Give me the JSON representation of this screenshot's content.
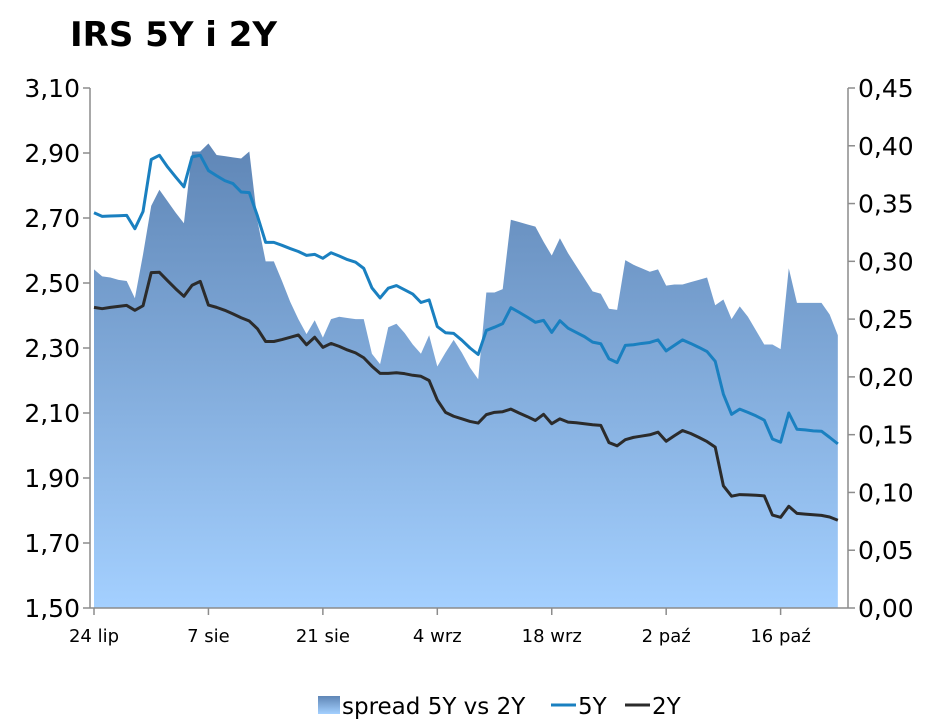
{
  "chart_data": {
    "type": "line",
    "title": "IRS 5Y i 2Y",
    "x_tick_labels": [
      "24 lip",
      "7 sie",
      "21 sie",
      "4 wrz",
      "18 wrz",
      "2 paź",
      "16 paź"
    ],
    "x_tick_days": [
      0,
      14,
      28,
      42,
      56,
      70,
      84
    ],
    "x_range_days": [
      0,
      92
    ],
    "left_axis": {
      "ylim": [
        1.5,
        3.1
      ],
      "ticks": [
        1.5,
        1.7,
        1.9,
        2.1,
        2.3,
        2.5,
        2.7,
        2.9,
        3.1
      ],
      "tick_labels": [
        "1,50",
        "1,70",
        "1,90",
        "2,10",
        "2,30",
        "2,50",
        "2,70",
        "2,90",
        "3,10"
      ]
    },
    "right_axis": {
      "ylim": [
        0.0,
        0.45
      ],
      "ticks": [
        0.0,
        0.05,
        0.1,
        0.15,
        0.2,
        0.25,
        0.3,
        0.35,
        0.4,
        0.45
      ],
      "tick_labels": [
        "0,00",
        "0,05",
        "0,10",
        "0,15",
        "0,20",
        "0,25",
        "0,30",
        "0,35",
        "0,40",
        "0,45"
      ]
    },
    "series": [
      {
        "name": "spread 5Y vs 2Y",
        "kind": "area",
        "axis": "right",
        "color": "#7aa0cc",
        "x": [
          0,
          1,
          2,
          3,
          4,
          5,
          6,
          7,
          8,
          9,
          10,
          11,
          12,
          13,
          14,
          15,
          16,
          17,
          18,
          19,
          20,
          21,
          22,
          23,
          24,
          25,
          26,
          27,
          28,
          29,
          30,
          31,
          32,
          33,
          34,
          35,
          36,
          37,
          38,
          39,
          40,
          41,
          42,
          43,
          44,
          45,
          46,
          47,
          48,
          49,
          50,
          51,
          52,
          53,
          54,
          55,
          56,
          57,
          58,
          59,
          60,
          61,
          62,
          63,
          64,
          65,
          66,
          67,
          68,
          69,
          70,
          71,
          72,
          73,
          74,
          75,
          76,
          77,
          78,
          79,
          80,
          81,
          82,
          83,
          84,
          85,
          86,
          87,
          88,
          89,
          90,
          91
        ],
        "values": [
          0.293,
          0.287,
          0.286,
          0.284,
          0.283,
          0.268,
          0.306,
          0.348,
          0.362,
          0.352,
          0.342,
          0.333,
          0.395,
          0.395,
          0.402,
          0.392,
          0.391,
          0.39,
          0.389,
          0.395,
          0.335,
          0.3,
          0.3,
          0.283,
          0.265,
          0.25,
          0.237,
          0.249,
          0.234,
          0.25,
          0.252,
          0.251,
          0.25,
          0.25,
          0.22,
          0.211,
          0.243,
          0.246,
          0.238,
          0.228,
          0.22,
          0.236,
          0.209,
          0.221,
          0.232,
          0.221,
          0.208,
          0.198,
          0.273,
          0.273,
          0.276,
          0.336,
          0.334,
          0.332,
          0.33,
          0.317,
          0.305,
          0.32,
          0.307,
          0.296,
          0.285,
          0.274,
          0.272,
          0.259,
          0.258,
          0.301,
          0.297,
          0.294,
          0.291,
          0.293,
          0.279,
          0.28,
          0.28,
          0.282,
          0.284,
          0.286,
          0.262,
          0.267,
          0.25,
          0.261,
          0.252,
          0.24,
          0.228,
          0.228,
          0.224,
          0.294,
          0.264,
          0.264,
          0.264,
          0.264,
          0.254,
          0.236
        ]
      },
      {
        "name": "5Y",
        "kind": "line",
        "axis": "left",
        "color": "#1a80c0",
        "x": [
          0,
          1,
          2,
          3,
          4,
          5,
          6,
          7,
          8,
          9,
          10,
          11,
          12,
          13,
          14,
          15,
          16,
          17,
          18,
          19,
          20,
          21,
          22,
          23,
          24,
          25,
          26,
          27,
          28,
          29,
          30,
          31,
          32,
          33,
          34,
          35,
          36,
          37,
          38,
          39,
          40,
          41,
          42,
          43,
          44,
          45,
          46,
          47,
          48,
          49,
          50,
          51,
          52,
          53,
          54,
          55,
          56,
          57,
          58,
          59,
          60,
          61,
          62,
          63,
          64,
          65,
          66,
          67,
          68,
          69,
          70,
          71,
          72,
          73,
          74,
          75,
          76,
          77,
          78,
          79,
          80,
          81,
          82,
          83,
          84,
          85,
          86,
          87,
          88,
          89,
          90,
          91
        ],
        "values": [
          2.716,
          2.705,
          2.706,
          2.707,
          2.708,
          2.667,
          2.72,
          2.88,
          2.893,
          2.857,
          2.826,
          2.796,
          2.888,
          2.893,
          2.846,
          2.83,
          2.815,
          2.806,
          2.78,
          2.778,
          2.706,
          2.625,
          2.625,
          2.616,
          2.606,
          2.597,
          2.585,
          2.588,
          2.576,
          2.593,
          2.583,
          2.572,
          2.564,
          2.545,
          2.485,
          2.454,
          2.484,
          2.492,
          2.479,
          2.466,
          2.44,
          2.448,
          2.366,
          2.347,
          2.345,
          2.324,
          2.3,
          2.28,
          2.354,
          2.364,
          2.375,
          2.424,
          2.41,
          2.395,
          2.379,
          2.385,
          2.348,
          2.384,
          2.361,
          2.348,
          2.335,
          2.318,
          2.313,
          2.267,
          2.255,
          2.308,
          2.31,
          2.314,
          2.317,
          2.325,
          2.291,
          2.308,
          2.325,
          2.314,
          2.302,
          2.289,
          2.259,
          2.158,
          2.096,
          2.112,
          2.102,
          2.091,
          2.078,
          2.02,
          2.01,
          2.1,
          2.05,
          2.048,
          2.045,
          2.044,
          2.025,
          2.005
        ]
      },
      {
        "name": "2Y",
        "kind": "line",
        "axis": "left",
        "color": "#2b2b2b",
        "x": [
          0,
          1,
          2,
          3,
          4,
          5,
          6,
          7,
          8,
          9,
          10,
          11,
          12,
          13,
          14,
          15,
          16,
          17,
          18,
          19,
          20,
          21,
          22,
          23,
          24,
          25,
          26,
          27,
          28,
          29,
          30,
          31,
          32,
          33,
          34,
          35,
          36,
          37,
          38,
          39,
          40,
          41,
          42,
          43,
          44,
          45,
          46,
          47,
          48,
          49,
          50,
          51,
          52,
          53,
          54,
          55,
          56,
          57,
          58,
          59,
          60,
          61,
          62,
          63,
          64,
          65,
          66,
          67,
          68,
          69,
          70,
          71,
          72,
          73,
          74,
          75,
          76,
          77,
          78,
          79,
          80,
          81,
          82,
          83,
          84,
          85,
          86,
          87,
          88,
          89,
          90,
          91
        ],
        "values": [
          2.425,
          2.421,
          2.425,
          2.428,
          2.431,
          2.416,
          2.43,
          2.532,
          2.533,
          2.507,
          2.482,
          2.459,
          2.493,
          2.505,
          2.432,
          2.425,
          2.416,
          2.405,
          2.393,
          2.383,
          2.359,
          2.32,
          2.32,
          2.326,
          2.333,
          2.34,
          2.31,
          2.333,
          2.302,
          2.314,
          2.305,
          2.294,
          2.285,
          2.27,
          2.244,
          2.222,
          2.222,
          2.224,
          2.221,
          2.216,
          2.213,
          2.2,
          2.14,
          2.102,
          2.09,
          2.082,
          2.074,
          2.069,
          2.095,
          2.102,
          2.104,
          2.112,
          2.1,
          2.089,
          2.077,
          2.096,
          2.067,
          2.082,
          2.072,
          2.07,
          2.067,
          2.064,
          2.062,
          2.009,
          1.999,
          2.018,
          2.025,
          2.029,
          2.033,
          2.041,
          2.013,
          2.03,
          2.046,
          2.037,
          2.025,
          2.012,
          1.995,
          1.876,
          1.844,
          1.849,
          1.848,
          1.847,
          1.845,
          1.786,
          1.779,
          1.813,
          1.791,
          1.789,
          1.787,
          1.785,
          1.78,
          1.77
        ]
      }
    ],
    "legend": {
      "placement": "bottom",
      "items": [
        {
          "label": "spread 5Y vs 2Y",
          "kind": "area",
          "color": "#7aa0cc"
        },
        {
          "label": "5Y",
          "kind": "line",
          "color": "#1a80c0"
        },
        {
          "label": "2Y",
          "kind": "line",
          "color": "#2b2b2b"
        }
      ]
    },
    "grid": false
  }
}
